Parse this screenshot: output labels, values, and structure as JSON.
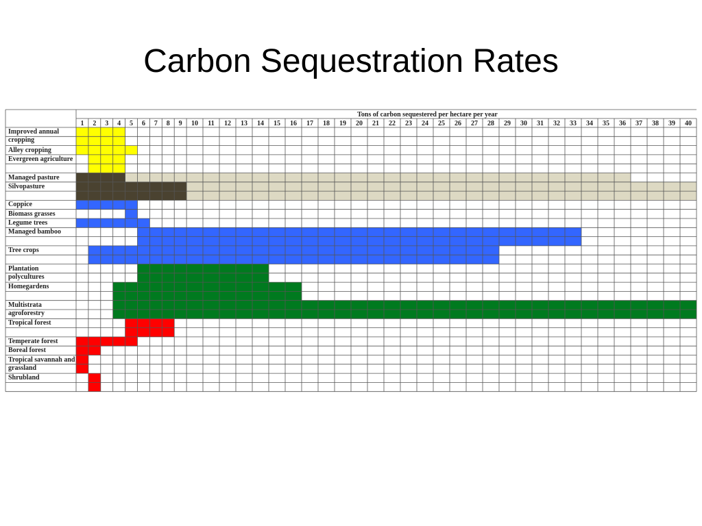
{
  "header": {
    "title": "Carbon Sequestration Rates"
  },
  "table": {
    "axis_title": "Tons of carbon sequestered per hectare per year",
    "columns": [
      1,
      2,
      3,
      4,
      5,
      6,
      7,
      8,
      9,
      10,
      11,
      12,
      13,
      14,
      15,
      16,
      17,
      18,
      19,
      20,
      21,
      22,
      23,
      24,
      25,
      26,
      27,
      28,
      29,
      30,
      31,
      32,
      33,
      34,
      35,
      36,
      37,
      38,
      39,
      40
    ],
    "rows": [
      {
        "label": "Improved annual cropping",
        "ranges": [
          {
            "start": 1,
            "end": 4,
            "color": "#ffff00"
          }
        ]
      },
      {
        "label": "Alley cropping",
        "ranges": [
          {
            "start": 1,
            "end": 5,
            "color": "#ffff00"
          }
        ]
      },
      {
        "label": "Evergreen agriculture",
        "ranges": [
          {
            "start": 2,
            "end": 4,
            "color": "#ffff00"
          }
        ]
      },
      {
        "label": "Managed pasture",
        "ranges": [
          {
            "start": 1,
            "end": 4,
            "color": "#4a4230"
          },
          {
            "start": 5,
            "end": 36,
            "color": "#ddd9c3"
          }
        ]
      },
      {
        "label": "Silvopasture",
        "ranges": [
          {
            "start": 1,
            "end": 9,
            "color": "#4a4230"
          },
          {
            "start": 10,
            "end": 40,
            "color": "#ddd9c3"
          }
        ]
      },
      {
        "label": "Coppice",
        "ranges": [
          {
            "start": 1,
            "end": 5,
            "color": "#3366ff"
          }
        ]
      },
      {
        "label": "Biomass grasses",
        "ranges": [
          {
            "start": 5,
            "end": 5,
            "color": "#3366ff"
          }
        ]
      },
      {
        "label": "Legume trees",
        "ranges": [
          {
            "start": 1,
            "end": 6,
            "color": "#3366ff"
          }
        ]
      },
      {
        "label": "Managed bamboo",
        "ranges": [
          {
            "start": 6,
            "end": 33,
            "color": "#3366ff"
          }
        ]
      },
      {
        "label": "Tree crops",
        "ranges": [
          {
            "start": 2,
            "end": 28,
            "color": "#3366ff"
          }
        ]
      },
      {
        "label": "Plantation polycultures",
        "ranges": [
          {
            "start": 6,
            "end": 14,
            "color": "#007a1f"
          }
        ]
      },
      {
        "label": "Homegardens",
        "ranges": [
          {
            "start": 4,
            "end": 16,
            "color": "#007a1f"
          }
        ]
      },
      {
        "label": "Multistrata agroforestry",
        "ranges": [
          {
            "start": 4,
            "end": 40,
            "color": "#007a1f"
          }
        ]
      },
      {
        "label": "Tropical forest",
        "ranges": [
          {
            "start": 5,
            "end": 8,
            "color": "#ff0000"
          }
        ]
      },
      {
        "label": "Temperate forest",
        "ranges": [
          {
            "start": 1,
            "end": 5,
            "color": "#ff0000"
          }
        ]
      },
      {
        "label": "Boreal forest",
        "ranges": [
          {
            "start": 1,
            "end": 2,
            "color": "#ff0000"
          }
        ]
      },
      {
        "label": "Tropical savannah and grassland",
        "ranges": [
          {
            "start": 1,
            "end": 1,
            "color": "#ff0000"
          }
        ]
      },
      {
        "label": "Shrubland",
        "ranges": [
          {
            "start": 2,
            "end": 2,
            "color": "#ff0000"
          }
        ]
      }
    ]
  }
}
